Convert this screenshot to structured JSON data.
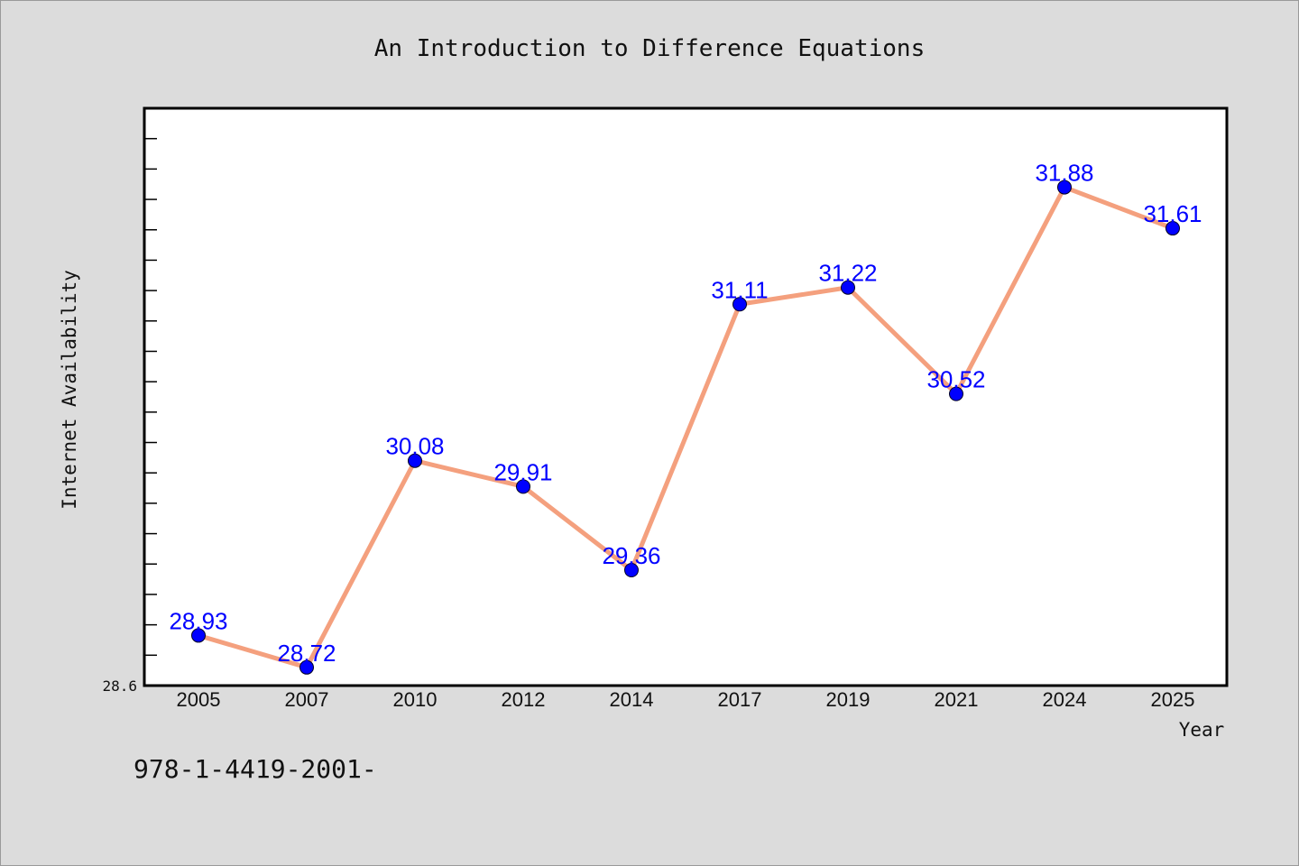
{
  "chart_data": {
    "type": "line",
    "title": "An Introduction to Difference Equations",
    "xlabel": "Year",
    "ylabel": "Internet Availability",
    "categories": [
      "2005",
      "2007",
      "2010",
      "2012",
      "2014",
      "2017",
      "2019",
      "2021",
      "2024",
      "2025"
    ],
    "series": [
      {
        "values": [
          28.93,
          28.72,
          30.08,
          29.91,
          29.36,
          31.11,
          31.22,
          30.52,
          31.88,
          31.61
        ]
      }
    ],
    "data_labels": [
      "28.93",
      "28.72",
      "30.08",
      "29.91",
      "29.36",
      "31.11",
      "31.22",
      "30.52",
      "31.88",
      "31.61"
    ],
    "ylim": [
      28.6,
      32.4
    ],
    "y_min_label": "28.6",
    "grid": false,
    "legend": "none",
    "colors": {
      "line": "#f4a07e",
      "marker": "#0000ff",
      "data_label": "#0000ff",
      "plot_background": "#ffffff",
      "page_background": "#dcdcdc"
    }
  },
  "footer_text": "978-1-4419-2001-"
}
